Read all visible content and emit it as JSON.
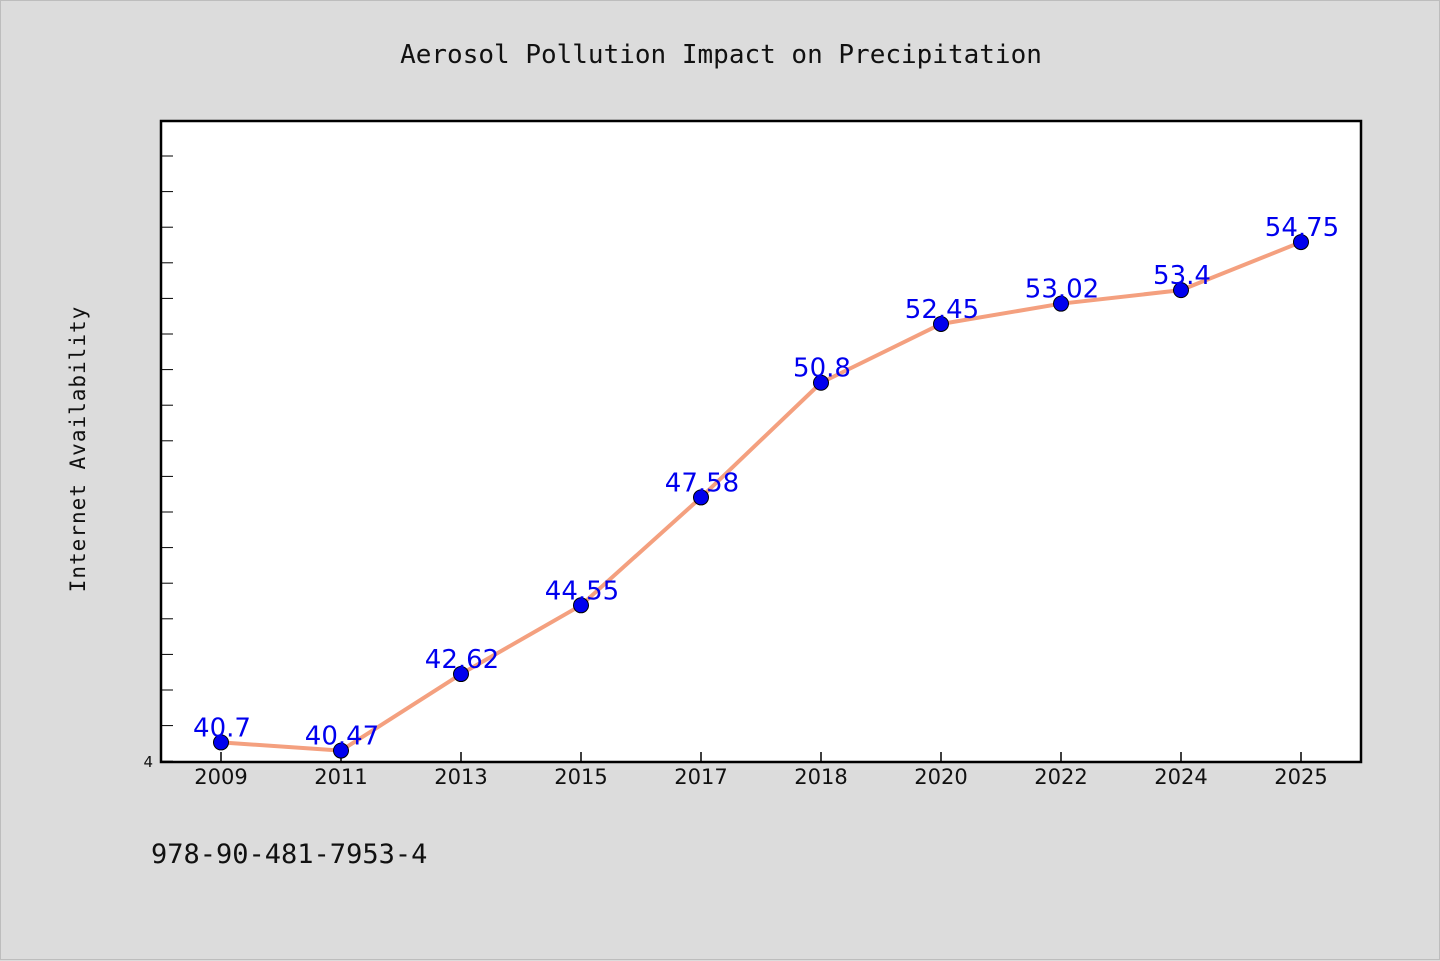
{
  "chart_data": {
    "type": "line",
    "title": "Aerosol Pollution Impact on Precipitation",
    "xlabel": "",
    "ylabel": "Internet Availability",
    "categories": [
      "2009",
      "2011",
      "2013",
      "2015",
      "2017",
      "2018",
      "2020",
      "2022",
      "2024",
      "2025"
    ],
    "series": [
      {
        "values": [
          40.7,
          40.47,
          42.62,
          44.55,
          47.58,
          50.8,
          52.45,
          53.02,
          53.4,
          54.75
        ],
        "data_labels": [
          "40.7",
          "40.47",
          "42.62",
          "44.55",
          "47.58",
          "50.8",
          "52.45",
          "53.02",
          "53.4",
          "54.75"
        ],
        "line_color": "#f4a07f",
        "marker_color": "#0000ee"
      }
    ],
    "ylim": [
      40.15,
      58.15
    ],
    "y_tick_labels": [
      "4"
    ],
    "grid": false,
    "legend": "none"
  },
  "footer": {
    "isbn": "978-90-481-7953-4"
  }
}
